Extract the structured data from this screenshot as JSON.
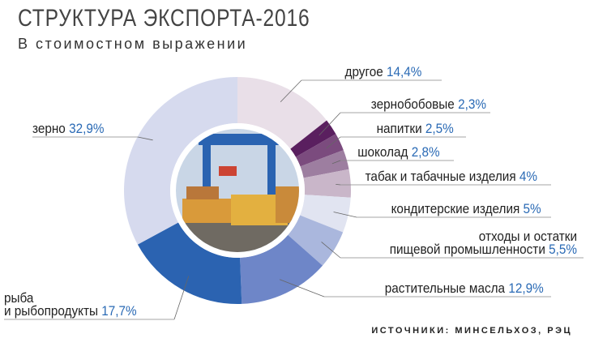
{
  "chart_data": {
    "type": "donut",
    "title": "СТРУКТУРА ЭКСПОРТА-2016",
    "subtitle": "В стоимостном выражении",
    "source": "ИСТОЧНИКИ: МИНСЕЛЬХОЗ, РЭЦ",
    "categories": [
      "другое",
      "зернобобовые",
      "напитки",
      "шоколад",
      "табак и табачные изделия",
      "кондитерские изделия",
      "отходы и остатки\nпищевой промышленности",
      "растительные масла",
      "рыба\nи рыбопродукты",
      "зерно"
    ],
    "values": [
      14.4,
      2.3,
      2.5,
      2.8,
      4,
      5,
      5.5,
      12.9,
      17.7,
      32.9
    ],
    "value_labels": [
      "14,4%",
      "2,3%",
      "2,5%",
      "2,8%",
      "4%",
      "5%",
      "5,5%",
      "12,9%",
      "17,7%",
      "32,9%"
    ],
    "colors": [
      "#e9dfe8",
      "#5a1f5f",
      "#7b4b7e",
      "#9d7ea0",
      "#c9b6c9",
      "#e1e4f1",
      "#aab7dd",
      "#6e86c8",
      "#2b63b1",
      "#d6daee"
    ]
  }
}
